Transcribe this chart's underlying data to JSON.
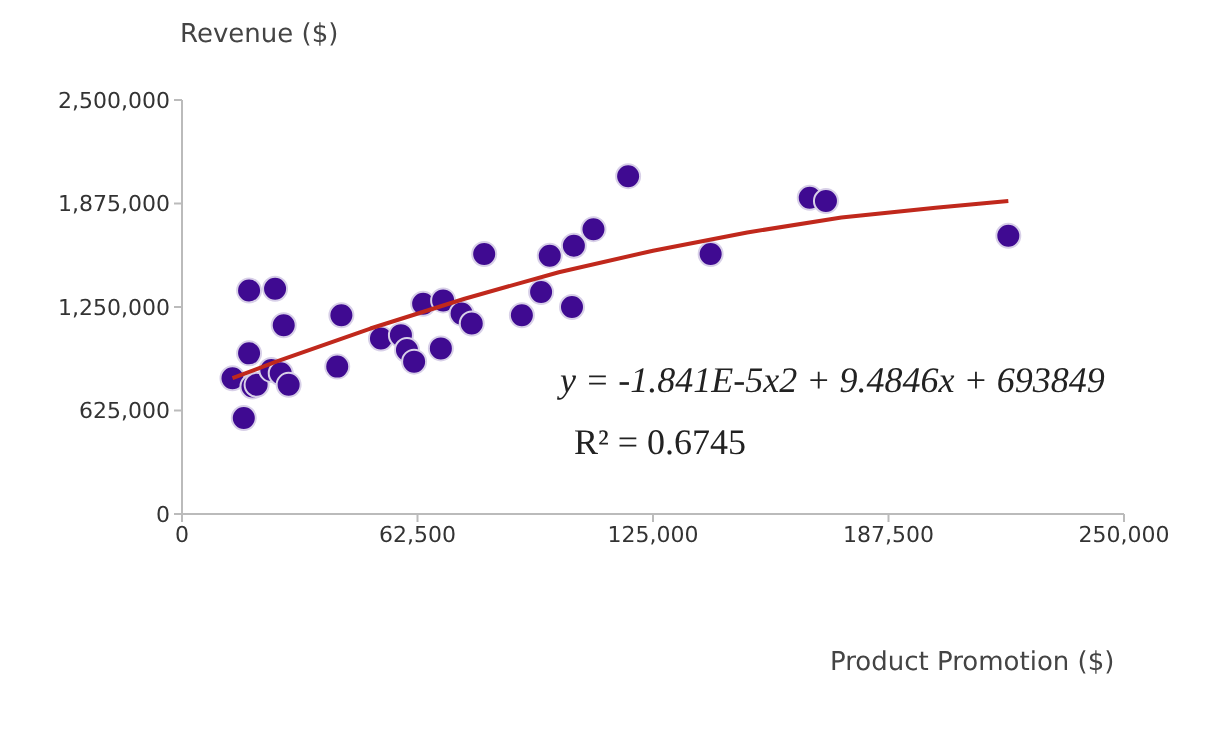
{
  "chart_data": {
    "type": "scatter",
    "xlabel": "Product Promotion ($)",
    "ylabel": "Revenue ($)",
    "xlim": [
      0,
      250000
    ],
    "xticks": [
      0,
      {
        "value": 62500,
        "label": "62,500"
      },
      {
        "value": 125000,
        "label": "125,000"
      },
      {
        "value": 187500,
        "label": "187,500"
      },
      {
        "value": 250000,
        "label": "250,000"
      }
    ],
    "ylim": [
      0,
      2500000
    ],
    "yticks": [
      0,
      {
        "value": 625000,
        "label": "625,000"
      },
      {
        "value": 1250000,
        "label": "1,250,000"
      },
      {
        "value": 1875000,
        "label": "1,875,000"
      },
      {
        "value": 2500000,
        "label": "2,500,000"
      }
    ],
    "series": [
      {
        "type": "scatter",
        "marker": "circle",
        "color": "#3f0a91",
        "x": [
          13400,
          17800,
          24700,
          17800,
          16400,
          18700,
          19800,
          23700,
          26200,
          28300,
          27000,
          42300,
          41200,
          52800,
          58100,
          59700,
          61600,
          68700,
          64000,
          69300,
          74200,
          76900,
          80200,
          90200,
          95300,
          103500,
          97600,
          104000,
          109200,
          118400,
          140300,
          166600,
          170900,
          219300
        ],
        "values": [
          820000,
          1350000,
          1360000,
          970000,
          580000,
          770000,
          780000,
          870000,
          850000,
          780000,
          1140000,
          1200000,
          890000,
          1060000,
          1080000,
          990000,
          920000,
          1000000,
          1270000,
          1290000,
          1210000,
          1150000,
          1570000,
          1200000,
          1340000,
          1250000,
          1560000,
          1620000,
          1720000,
          2040000,
          1570000,
          1910000,
          1890000,
          1680000
        ]
      },
      {
        "type": "line",
        "marker": "none",
        "color": "#c0281c",
        "x": [
          13400,
          25000,
          50000,
          75000,
          100000,
          125000,
          150000,
          175000,
          200000,
          219300
        ],
        "values": [
          820000,
          920000,
          1120000,
          1300000,
          1460000,
          1590000,
          1700000,
          1790000,
          1850000,
          1890000
        ]
      }
    ],
    "annotations": [
      "y = -1.841E-5x2 + 9.4846x + 693849",
      "R² = 0.6745"
    ]
  }
}
